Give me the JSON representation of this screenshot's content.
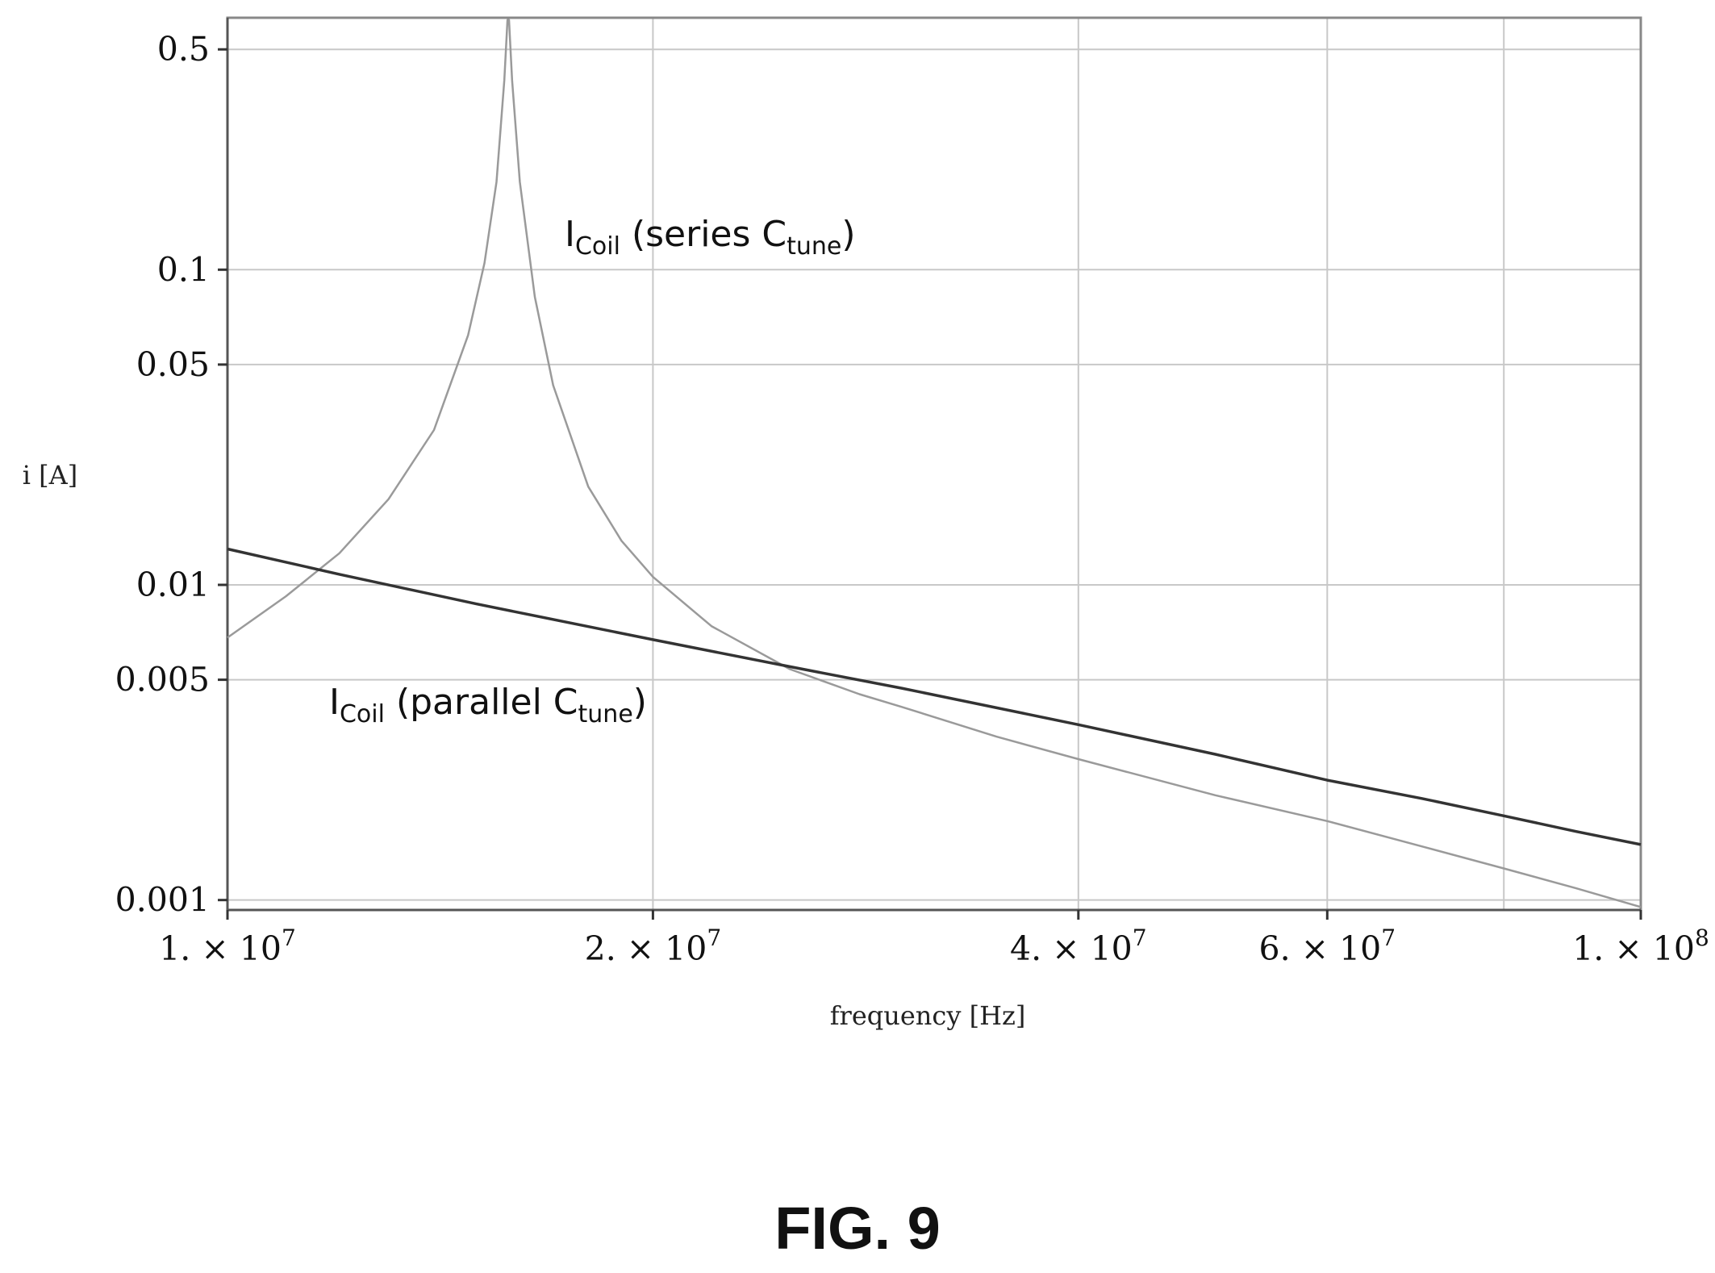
{
  "figure_caption": "FIG. 9",
  "chart_data": {
    "type": "line",
    "xlabel": "frequency [Hz]",
    "ylabel": "i [A]",
    "x_scale": "log",
    "y_scale": "log",
    "xlim": [
      10000000,
      100000000
    ],
    "ylim": [
      0.00093,
      0.63
    ],
    "grid": true,
    "x_ticks": [
      {
        "value": 10000000,
        "label": "1. × 10",
        "exp": "7"
      },
      {
        "value": 20000000,
        "label": "2. × 10",
        "exp": "7"
      },
      {
        "value": 40000000,
        "label": "4. × 10",
        "exp": "7"
      },
      {
        "value": 60000000,
        "label": "6. × 10",
        "exp": "7"
      },
      {
        "value": 100000000,
        "label": "1. × 10",
        "exp": "8"
      }
    ],
    "x_grid": [
      10000000,
      20000000,
      40000000,
      60000000,
      80000000,
      100000000
    ],
    "y_ticks": [
      {
        "value": 0.5,
        "label": "0.5"
      },
      {
        "value": 0.1,
        "label": "0.1"
      },
      {
        "value": 0.05,
        "label": "0.05"
      },
      {
        "value": 0.01,
        "label": "0.01"
      },
      {
        "value": 0.005,
        "label": "0.005"
      },
      {
        "value": 0.001,
        "label": "0.001"
      }
    ],
    "annotations": [
      {
        "id": "series",
        "main": "I",
        "sub": "Coil",
        "mid": " (series C",
        "sub2": "tune",
        "end": ")"
      },
      {
        "id": "parallel",
        "main": "I",
        "sub": "Coil",
        "mid": " (parallel C",
        "sub2": "tune",
        "end": ")"
      }
    ],
    "series": [
      {
        "color": "#9a9a9a",
        "x": [
          10000000,
          11000000,
          12000000,
          13000000,
          14000000,
          14800000,
          15200000,
          15500000,
          15700000,
          15780000,
          15820000,
          15900000,
          16100000,
          16500000,
          17000000,
          18000000,
          19000000,
          20000000,
          22000000,
          25000000,
          28000000,
          30000000,
          35000000,
          40000000,
          50000000,
          60000000,
          70000000,
          80000000,
          90000000,
          100000000
        ],
        "values": [
          0.0068,
          0.0092,
          0.0126,
          0.0187,
          0.031,
          0.062,
          0.105,
          0.19,
          0.4,
          0.62,
          0.62,
          0.4,
          0.19,
          0.082,
          0.043,
          0.0205,
          0.0138,
          0.0106,
          0.0074,
          0.0054,
          0.0045,
          0.0041,
          0.0033,
          0.0028,
          0.00215,
          0.00178,
          0.00148,
          0.00126,
          0.00109,
          0.00095
        ]
      },
      {
        "color": "#333333",
        "x": [
          10000000,
          12000000,
          15000000,
          20000000,
          25000000,
          30000000,
          40000000,
          50000000,
          60000000,
          70000000,
          80000000,
          90000000,
          100000000
        ],
        "values": [
          0.013,
          0.0108,
          0.0087,
          0.0067,
          0.0055,
          0.0047,
          0.0036,
          0.0029,
          0.0024,
          0.0021,
          0.00185,
          0.00165,
          0.0015
        ]
      }
    ]
  }
}
